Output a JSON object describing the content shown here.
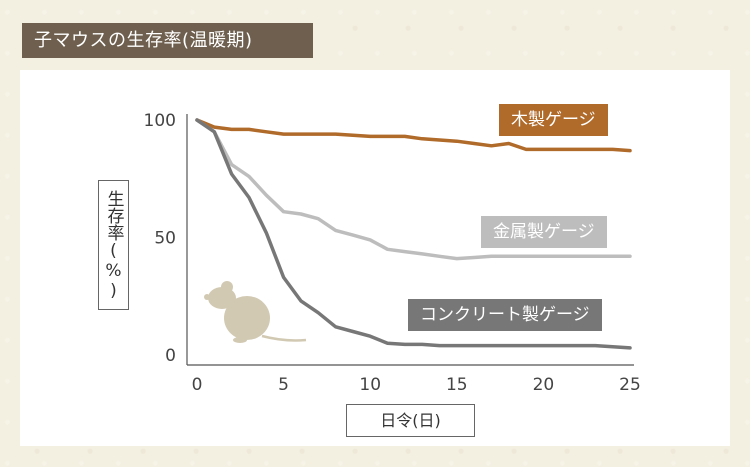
{
  "header": {
    "title": "子マウスの生存率(温暖期)"
  },
  "chart_data": {
    "type": "line",
    "title": "子マウスの生存率(温暖期)",
    "xlabel": "日令(日)",
    "ylabel": "生存率(%)",
    "xlim": [
      0,
      25
    ],
    "ylim": [
      0,
      100
    ],
    "x_ticks": [
      "0",
      "5",
      "10",
      "15",
      "20",
      "25"
    ],
    "y_ticks": [
      "0",
      "50",
      "100"
    ],
    "grid": false,
    "legend_placement": "inline-right",
    "series": [
      {
        "name": "木製ゲージ",
        "color": "#b06a2a",
        "x": [
          0,
          1,
          2,
          3,
          4,
          5,
          6,
          7,
          8,
          9,
          10,
          11,
          12,
          13,
          14,
          15,
          16,
          17,
          18,
          19,
          20,
          21,
          22,
          23,
          24,
          25
        ],
        "values": [
          100,
          97,
          96,
          96,
          95,
          94,
          94,
          94,
          94,
          93.5,
          93,
          93,
          93,
          92,
          91.5,
          91,
          90,
          89,
          90,
          87.5,
          87.5,
          87.5,
          87.5,
          87.5,
          87.5,
          87
        ]
      },
      {
        "name": "金属製ゲージ",
        "color": "#bdbdbd",
        "x": [
          0,
          1,
          2,
          3,
          4,
          5,
          6,
          7,
          8,
          9,
          10,
          11,
          12,
          13,
          14,
          15,
          16,
          17,
          18,
          19,
          20,
          21,
          22,
          23,
          24,
          25
        ],
        "values": [
          100,
          95,
          81,
          76,
          68,
          61,
          60,
          58,
          53,
          51,
          49,
          45,
          44,
          43,
          42,
          41,
          41.5,
          42,
          42,
          42,
          42,
          42,
          42,
          42,
          42,
          42
        ]
      },
      {
        "name": "コンクリート製ゲージ",
        "color": "#777777",
        "x": [
          0,
          1,
          2,
          3,
          4,
          5,
          6,
          7,
          8,
          9,
          10,
          11,
          12,
          13,
          14,
          15,
          16,
          17,
          18,
          19,
          20,
          21,
          22,
          23,
          24,
          25
        ],
        "values": [
          100,
          95,
          77,
          67,
          52,
          33,
          23,
          18,
          12,
          10,
          8,
          5,
          4.5,
          4.5,
          4,
          4,
          4,
          4,
          4,
          4,
          4,
          4,
          4,
          4,
          3.5,
          3
        ]
      }
    ]
  },
  "colors": {
    "title_bg": "#6e5f4e",
    "page_bg": "#f3efe1",
    "axis": "#555555",
    "mouse_icon": "#d2c9b3"
  },
  "icons": {
    "mouse": "mouse-illustration"
  }
}
